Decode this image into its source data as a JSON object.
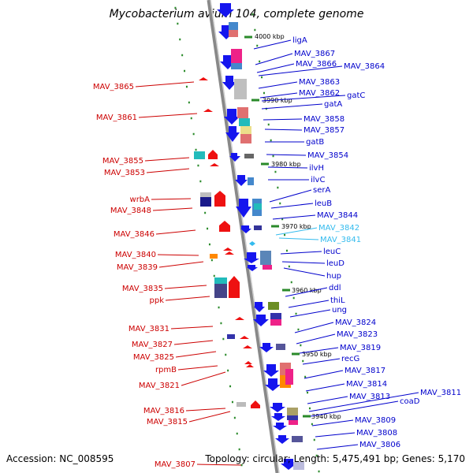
{
  "header": {
    "title": "Mycobacterium avium 104, complete genome"
  },
  "footer": {
    "accession": "Accession: NC_008595",
    "topology": "Topology: circular; Length: 5,475,491 bp; Genes: 5,170"
  },
  "colors": {
    "forward": "#0000cc",
    "reverse": "#cc0000",
    "highlight": "#33bbee",
    "backbone": "#888888",
    "tick": "#2a8a2a"
  },
  "scale_ticks": [
    "4000 kbp",
    "3990 kbp",
    "3980 kbp",
    "3970 kbp",
    "3960 kbp",
    "3950 kbp",
    "3940 kbp"
  ],
  "genes_right": [
    "ligA",
    "MAV_3867",
    "MAV_3866",
    "MAV_3864",
    "MAV_3863",
    "MAV_3862",
    "gatC",
    "gatA",
    "MAV_3858",
    "MAV_3857",
    "gatB",
    "MAV_3854",
    "ilvH",
    "ilvC",
    "serA",
    "leuB",
    "MAV_3844",
    "MAV_3842",
    "MAV_3841",
    "leuC",
    "leuD",
    "hup",
    "ddl",
    "thiL",
    "ung",
    "MAV_3824",
    "MAV_3823",
    "MAV_3819",
    "recG",
    "MAV_3817",
    "MAV_3814",
    "MAV_3813",
    "MAV_3811",
    "coaD",
    "MAV_3809",
    "MAV_3808",
    "MAV_3806"
  ],
  "genes_left": [
    "MAV_3865",
    "MAV_3861",
    "MAV_3855",
    "MAV_3853",
    "wrbA",
    "MAV_3848",
    "MAV_3846",
    "MAV_3840",
    "MAV_3839",
    "MAV_3835",
    "ppk",
    "MAV_3831",
    "MAV_3827",
    "MAV_3825",
    "rpmB",
    "MAV_3821",
    "MAV_3816",
    "MAV_3815",
    "MAV_3807"
  ]
}
